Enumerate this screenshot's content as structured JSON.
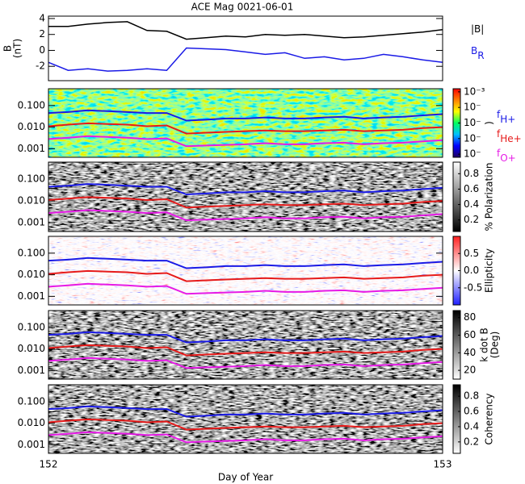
{
  "chart_data": [
    {
      "type": "line",
      "title": "ACE Mag 0021-06-01",
      "ylabel": "B",
      "ylabel2": "(nT)",
      "y_scale": "linear",
      "background": "none",
      "x": [
        152,
        152.05,
        152.1,
        152.15,
        152.2,
        152.25,
        152.3,
        152.35,
        152.4,
        152.45,
        152.5,
        152.55,
        152.6,
        152.65,
        152.7,
        152.75,
        152.8,
        152.85,
        152.9,
        152.95,
        153
      ],
      "xlim": [
        152,
        153
      ],
      "ylim": [
        -3.8,
        4.3
      ],
      "yticks": [
        -2,
        0,
        2,
        4
      ],
      "series": [
        {
          "name": "|B|",
          "color": "#000000",
          "values": [
            3,
            3,
            3.3,
            3.5,
            3.6,
            2.5,
            2.4,
            1.4,
            1.6,
            1.8,
            1.7,
            2,
            1.9,
            2,
            1.8,
            1.6,
            1.7,
            1.9,
            2.1,
            2.3,
            2.6
          ]
        },
        {
          "name": "B",
          "name_sub": "R",
          "color": "#1a1ae6",
          "values": [
            -1.5,
            -2.5,
            -2.3,
            -2.6,
            -2.5,
            -2.3,
            -2.5,
            0.3,
            0.2,
            0.1,
            -0.2,
            -0.5,
            -0.3,
            -1,
            -0.8,
            -1.2,
            -1,
            -0.5,
            -0.8,
            -1.2,
            -1.5
          ]
        }
      ]
    },
    {
      "type": "line",
      "y_scale": "log",
      "background": "rainbow",
      "legend": true,
      "x": [
        152,
        152.05,
        152.1,
        152.15,
        152.2,
        152.25,
        152.3,
        152.35,
        152.4,
        152.45,
        152.5,
        152.55,
        152.6,
        152.65,
        152.7,
        152.75,
        152.8,
        152.85,
        152.9,
        152.95,
        153
      ],
      "xlim": [
        152,
        153
      ],
      "ylim": [
        0.0004,
        0.6
      ],
      "yticks": [
        0.001,
        {
          "value": 0.01,
          "label": "0.010"
        },
        {
          "value": 0.1,
          "label": "0.100"
        }
      ],
      "colorbar": {
        "colors": [
          "#200060",
          "#0000ff",
          "#00c0ff",
          "#00ff60",
          "#ffff00",
          "#ff8000",
          "#ff0000"
        ],
        "lim": [
          -7.2,
          -2.8
        ],
        "ticks": [
          {
            "value": -3,
            "label": "10⁻³"
          },
          {
            "value": -4,
            "label": "10⁻"
          },
          {
            "value": -5,
            "label": "10⁻"
          },
          {
            "value": -6,
            "label": "10⁻"
          },
          {
            "value": -7,
            "label": "10⁻"
          }
        ],
        "label": ")"
      },
      "series": [
        {
          "name": "f",
          "name_sub": "H+",
          "color": "#1a1ae6",
          "values": [
            0.045,
            0.05,
            0.06,
            0.055,
            0.05,
            0.045,
            0.045,
            0.02,
            0.022,
            0.025,
            0.025,
            0.028,
            0.025,
            0.025,
            0.028,
            0.03,
            0.025,
            0.028,
            0.03,
            0.035,
            0.04
          ]
        },
        {
          "name": "f",
          "name_sub": "He+",
          "color": "#e61a1a",
          "values": [
            0.011,
            0.013,
            0.015,
            0.014,
            0.013,
            0.011,
            0.012,
            0.005,
            0.0055,
            0.006,
            0.0065,
            0.007,
            0.0065,
            0.0065,
            0.007,
            0.0075,
            0.0065,
            0.007,
            0.0075,
            0.009,
            0.01
          ]
        },
        {
          "name": "f",
          "name_sub": "O+",
          "color": "#e61ae6",
          "values": [
            0.0028,
            0.0032,
            0.0038,
            0.0035,
            0.0032,
            0.0028,
            0.003,
            0.0013,
            0.0014,
            0.0015,
            0.0016,
            0.0018,
            0.0016,
            0.0016,
            0.0018,
            0.0019,
            0.0016,
            0.0018,
            0.0019,
            0.0022,
            0.0025
          ]
        }
      ]
    },
    {
      "type": "line",
      "y_scale": "log",
      "background": "gray",
      "x": [
        152,
        152.05,
        152.1,
        152.15,
        152.2,
        152.25,
        152.3,
        152.35,
        152.4,
        152.45,
        152.5,
        152.55,
        152.6,
        152.65,
        152.7,
        152.75,
        152.8,
        152.85,
        152.9,
        152.95,
        153
      ],
      "xlim": [
        152,
        153
      ],
      "ylim": [
        0.0004,
        0.6
      ],
      "yticks": [
        0.001,
        {
          "value": 0.01,
          "label": "0.010"
        },
        {
          "value": 0.1,
          "label": "0.100"
        }
      ],
      "colorbar": {
        "colors": [
          "#000000",
          "#ffffff"
        ],
        "lim": [
          0.05,
          0.95
        ],
        "ticks": [
          0.2,
          0.4,
          0.6,
          0.8
        ],
        "label": "% Polarization"
      },
      "series": [
        {
          "color": "#1a1ae6",
          "values": [
            0.045,
            0.05,
            0.06,
            0.055,
            0.05,
            0.045,
            0.045,
            0.02,
            0.022,
            0.025,
            0.025,
            0.028,
            0.025,
            0.025,
            0.028,
            0.03,
            0.025,
            0.028,
            0.03,
            0.035,
            0.04
          ]
        },
        {
          "color": "#e61a1a",
          "values": [
            0.011,
            0.013,
            0.015,
            0.014,
            0.013,
            0.011,
            0.012,
            0.005,
            0.0055,
            0.006,
            0.0065,
            0.007,
            0.0065,
            0.0065,
            0.007,
            0.0075,
            0.0065,
            0.007,
            0.0075,
            0.009,
            0.01
          ]
        },
        {
          "color": "#e61ae6",
          "values": [
            0.0028,
            0.0032,
            0.0038,
            0.0035,
            0.0032,
            0.0028,
            0.003,
            0.0013,
            0.0014,
            0.0015,
            0.0016,
            0.0018,
            0.0016,
            0.0016,
            0.0018,
            0.0019,
            0.0016,
            0.0018,
            0.0019,
            0.0022,
            0.0025
          ]
        }
      ]
    },
    {
      "type": "line",
      "y_scale": "log",
      "background": "bwr",
      "x": [
        152,
        152.05,
        152.1,
        152.15,
        152.2,
        152.25,
        152.3,
        152.35,
        152.4,
        152.45,
        152.5,
        152.55,
        152.6,
        152.65,
        152.7,
        152.75,
        152.8,
        152.85,
        152.9,
        152.95,
        153
      ],
      "xlim": [
        152,
        153
      ],
      "ylim": [
        0.0004,
        0.6
      ],
      "yticks": [
        0.001,
        {
          "value": 0.01,
          "label": "0.010"
        },
        {
          "value": 0.1,
          "label": "0.100"
        }
      ],
      "colorbar": {
        "colors": [
          "#2020ff",
          "#ffffff",
          "#ff2020"
        ],
        "lim": [
          -1,
          1
        ],
        "ticks": [
          -0.5,
          {
            "value": 0,
            "label": "0.0"
          },
          0.5
        ],
        "label": "Ellipticity"
      },
      "series": [
        {
          "color": "#1a1ae6",
          "values": [
            0.045,
            0.05,
            0.06,
            0.055,
            0.05,
            0.045,
            0.045,
            0.02,
            0.022,
            0.025,
            0.025,
            0.028,
            0.025,
            0.025,
            0.028,
            0.03,
            0.025,
            0.028,
            0.03,
            0.035,
            0.04
          ]
        },
        {
          "color": "#e61a1a",
          "values": [
            0.011,
            0.013,
            0.015,
            0.014,
            0.013,
            0.011,
            0.012,
            0.005,
            0.0055,
            0.006,
            0.0065,
            0.007,
            0.0065,
            0.0065,
            0.007,
            0.0075,
            0.0065,
            0.007,
            0.0075,
            0.009,
            0.01
          ]
        },
        {
          "color": "#e61ae6",
          "values": [
            0.0028,
            0.0032,
            0.0038,
            0.0035,
            0.0032,
            0.0028,
            0.003,
            0.0013,
            0.0014,
            0.0015,
            0.0016,
            0.0018,
            0.0016,
            0.0016,
            0.0018,
            0.0019,
            0.0016,
            0.0018,
            0.0019,
            0.0022,
            0.0025
          ]
        }
      ]
    },
    {
      "type": "line",
      "y_scale": "log",
      "background": "gray",
      "x": [
        152,
        152.05,
        152.1,
        152.15,
        152.2,
        152.25,
        152.3,
        152.35,
        152.4,
        152.45,
        152.5,
        152.55,
        152.6,
        152.65,
        152.7,
        152.75,
        152.8,
        152.85,
        152.9,
        152.95,
        153
      ],
      "xlim": [
        152,
        153
      ],
      "ylim": [
        0.0004,
        0.6
      ],
      "yticks": [
        0.001,
        {
          "value": 0.01,
          "label": "0.010"
        },
        {
          "value": 0.1,
          "label": "0.100"
        }
      ],
      "colorbar": {
        "colors": [
          "#ffffff",
          "#000000"
        ],
        "lim": [
          10,
          88
        ],
        "ticks": [
          20,
          40,
          60,
          80
        ],
        "label": "k dot B",
        "label2": "(Deg)"
      },
      "series": [
        {
          "color": "#1a1ae6",
          "values": [
            0.045,
            0.05,
            0.06,
            0.055,
            0.05,
            0.045,
            0.045,
            0.02,
            0.022,
            0.025,
            0.025,
            0.028,
            0.025,
            0.025,
            0.028,
            0.03,
            0.025,
            0.028,
            0.03,
            0.035,
            0.04
          ]
        },
        {
          "color": "#e61a1a",
          "values": [
            0.011,
            0.013,
            0.015,
            0.014,
            0.013,
            0.011,
            0.012,
            0.005,
            0.0055,
            0.006,
            0.0065,
            0.007,
            0.0065,
            0.0065,
            0.007,
            0.0075,
            0.0065,
            0.007,
            0.0075,
            0.009,
            0.01
          ]
        },
        {
          "color": "#e61ae6",
          "values": [
            0.0028,
            0.0032,
            0.0038,
            0.0035,
            0.0032,
            0.0028,
            0.003,
            0.0013,
            0.0014,
            0.0015,
            0.0016,
            0.0018,
            0.0016,
            0.0016,
            0.0018,
            0.0019,
            0.0016,
            0.0018,
            0.0019,
            0.0022,
            0.0025
          ]
        }
      ]
    },
    {
      "type": "line",
      "y_scale": "log",
      "background": "gray",
      "xlabel": "Day of Year",
      "xticks": [
        152,
        153
      ],
      "x": [
        152,
        152.05,
        152.1,
        152.15,
        152.2,
        152.25,
        152.3,
        152.35,
        152.4,
        152.45,
        152.5,
        152.55,
        152.6,
        152.65,
        152.7,
        152.75,
        152.8,
        152.85,
        152.9,
        152.95,
        153
      ],
      "xlim": [
        152,
        153
      ],
      "ylim": [
        0.0004,
        0.6
      ],
      "yticks": [
        0.001,
        {
          "value": 0.01,
          "label": "0.010"
        },
        {
          "value": 0.1,
          "label": "0.100"
        }
      ],
      "colorbar": {
        "colors": [
          "#ffffff",
          "#000000"
        ],
        "lim": [
          0.05,
          0.95
        ],
        "ticks": [
          0.2,
          0.4,
          0.6,
          0.8
        ],
        "label": "Coherency"
      },
      "series": [
        {
          "color": "#1a1ae6",
          "values": [
            0.045,
            0.05,
            0.06,
            0.055,
            0.05,
            0.045,
            0.045,
            0.02,
            0.022,
            0.025,
            0.025,
            0.028,
            0.025,
            0.025,
            0.028,
            0.03,
            0.025,
            0.028,
            0.03,
            0.035,
            0.04
          ]
        },
        {
          "color": "#e61a1a",
          "values": [
            0.011,
            0.013,
            0.015,
            0.014,
            0.013,
            0.011,
            0.012,
            0.005,
            0.0055,
            0.006,
            0.0065,
            0.007,
            0.0065,
            0.0065,
            0.007,
            0.0075,
            0.0065,
            0.007,
            0.0075,
            0.009,
            0.01
          ]
        },
        {
          "color": "#e61ae6",
          "values": [
            0.0028,
            0.0032,
            0.0038,
            0.0035,
            0.0032,
            0.0028,
            0.003,
            0.0013,
            0.0014,
            0.0015,
            0.0016,
            0.0018,
            0.0016,
            0.0016,
            0.0018,
            0.0019,
            0.0016,
            0.0018,
            0.0019,
            0.0022,
            0.0025
          ]
        }
      ]
    }
  ]
}
